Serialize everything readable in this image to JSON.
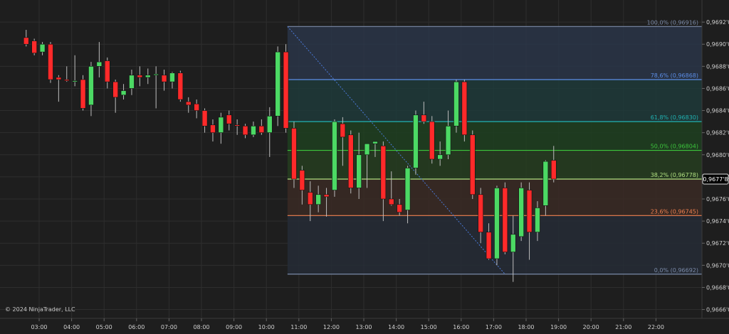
{
  "copyright": "© 2024 NinjaTrader, LLC",
  "colors": {
    "background": "#1e1e1e",
    "grid": "#2e2e2e",
    "up": "#4cd964",
    "down": "#ff2a2a",
    "axis_text": "#d0d0d0",
    "price_tag_bg": "#000000",
    "price_tag_border": "#e0e0e0"
  },
  "chart_data": {
    "type": "candlestick",
    "grid": true,
    "x_tick_labels": [
      "03:00",
      "04:00",
      "05:00",
      "06:00",
      "07:00",
      "08:00",
      "09:00",
      "10:00",
      "11:00",
      "12:00",
      "13:00",
      "14:00",
      "15:00",
      "16:00",
      "17:00",
      "18:00",
      "19:00",
      "20:00",
      "21:00",
      "22:00"
    ],
    "y_tick_labels": [
      "0,9692'0",
      "0,9690'0",
      "0,9688'0",
      "0,9686'0",
      "0,9684'0",
      "0,9682'0",
      "0,9680'0",
      "0,9678'0",
      "0,9676'0",
      "0,9674'0",
      "0,9672'0",
      "0,9670'0",
      "0,9668'0",
      "0,9666'0"
    ],
    "y_tick_values": [
      0.9692,
      0.969,
      0.9688,
      0.9686,
      0.9684,
      0.9682,
      0.968,
      0.9678,
      0.9676,
      0.9674,
      0.9672,
      0.967,
      0.9668,
      0.9666
    ],
    "ylim": [
      0.96652,
      0.9694
    ],
    "x_start_hour": 2.5,
    "x_end_hour": 22.8,
    "current_price": {
      "value": 0.96778,
      "label": "0,9677'8"
    },
    "candles": [
      {
        "t": 2.6,
        "o": 0.96906,
        "h": 0.96913,
        "l": 0.96898,
        "c": 0.969
      },
      {
        "t": 2.85,
        "o": 0.96903,
        "h": 0.96905,
        "l": 0.9689,
        "c": 0.96892
      },
      {
        "t": 3.1,
        "o": 0.96893,
        "h": 0.96902,
        "l": 0.9689,
        "c": 0.969
      },
      {
        "t": 3.35,
        "o": 0.969,
        "h": 0.96902,
        "l": 0.96865,
        "c": 0.96868
      },
      {
        "t": 3.6,
        "o": 0.9687,
        "h": 0.96872,
        "l": 0.96848,
        "c": 0.96868
      },
      {
        "t": 3.85,
        "o": 0.96868,
        "h": 0.9688,
        "l": 0.96866,
        "c": 0.96867
      },
      {
        "t": 4.1,
        "o": 0.96867,
        "h": 0.9689,
        "l": 0.96862,
        "c": 0.96867
      },
      {
        "t": 4.35,
        "o": 0.96868,
        "h": 0.96872,
        "l": 0.9684,
        "c": 0.96842
      },
      {
        "t": 4.6,
        "o": 0.96845,
        "h": 0.96884,
        "l": 0.96835,
        "c": 0.9688
      },
      {
        "t": 4.85,
        "o": 0.9688,
        "h": 0.96902,
        "l": 0.9687,
        "c": 0.96884
      },
      {
        "t": 5.1,
        "o": 0.96885,
        "h": 0.96888,
        "l": 0.9686,
        "c": 0.96866
      },
      {
        "t": 5.35,
        "o": 0.96866,
        "h": 0.96868,
        "l": 0.96838,
        "c": 0.96852
      },
      {
        "t": 5.6,
        "o": 0.96854,
        "h": 0.96864,
        "l": 0.9685,
        "c": 0.96858
      },
      {
        "t": 5.85,
        "o": 0.9686,
        "h": 0.96877,
        "l": 0.96854,
        "c": 0.96872
      },
      {
        "t": 6.1,
        "o": 0.96872,
        "h": 0.9688,
        "l": 0.96862,
        "c": 0.9687
      },
      {
        "t": 6.35,
        "o": 0.9687,
        "h": 0.96878,
        "l": 0.96864,
        "c": 0.96872
      },
      {
        "t": 6.6,
        "o": 0.96872,
        "h": 0.9688,
        "l": 0.96842,
        "c": 0.96873
      },
      {
        "t": 6.85,
        "o": 0.96872,
        "h": 0.96877,
        "l": 0.96858,
        "c": 0.96866
      },
      {
        "t": 7.1,
        "o": 0.96866,
        "h": 0.96875,
        "l": 0.9686,
        "c": 0.96874
      },
      {
        "t": 7.35,
        "o": 0.96874,
        "h": 0.96876,
        "l": 0.96848,
        "c": 0.9685
      },
      {
        "t": 7.6,
        "o": 0.96848,
        "h": 0.96852,
        "l": 0.96838,
        "c": 0.96845
      },
      {
        "t": 7.85,
        "o": 0.96846,
        "h": 0.9685,
        "l": 0.96833,
        "c": 0.9684
      },
      {
        "t": 8.1,
        "o": 0.9684,
        "h": 0.96842,
        "l": 0.9682,
        "c": 0.96826
      },
      {
        "t": 8.35,
        "o": 0.96827,
        "h": 0.96832,
        "l": 0.96812,
        "c": 0.9682
      },
      {
        "t": 8.6,
        "o": 0.9682,
        "h": 0.96838,
        "l": 0.9681,
        "c": 0.96834
      },
      {
        "t": 8.85,
        "o": 0.96836,
        "h": 0.9684,
        "l": 0.96822,
        "c": 0.96828
      },
      {
        "t": 9.1,
        "o": 0.96827,
        "h": 0.96832,
        "l": 0.96818,
        "c": 0.96826
      },
      {
        "t": 9.35,
        "o": 0.96826,
        "h": 0.96828,
        "l": 0.96815,
        "c": 0.96818
      },
      {
        "t": 9.6,
        "o": 0.96818,
        "h": 0.9683,
        "l": 0.96816,
        "c": 0.96826
      },
      {
        "t": 9.85,
        "o": 0.96826,
        "h": 0.96832,
        "l": 0.96818,
        "c": 0.9682
      },
      {
        "t": 10.1,
        "o": 0.9682,
        "h": 0.96843,
        "l": 0.96798,
        "c": 0.96835
      },
      {
        "t": 10.35,
        "o": 0.96835,
        "h": 0.96898,
        "l": 0.96826,
        "c": 0.96893
      },
      {
        "t": 10.6,
        "o": 0.96893,
        "h": 0.969,
        "l": 0.9682,
        "c": 0.96824
      },
      {
        "t": 10.85,
        "o": 0.96824,
        "h": 0.9683,
        "l": 0.9677,
        "c": 0.96778
      },
      {
        "t": 11.1,
        "o": 0.96786,
        "h": 0.9679,
        "l": 0.96755,
        "c": 0.96768
      },
      {
        "t": 11.35,
        "o": 0.96766,
        "h": 0.96776,
        "l": 0.9674,
        "c": 0.96755
      },
      {
        "t": 11.6,
        "o": 0.96755,
        "h": 0.96772,
        "l": 0.96748,
        "c": 0.96764
      },
      {
        "t": 11.85,
        "o": 0.96764,
        "h": 0.9677,
        "l": 0.96744,
        "c": 0.96762
      },
      {
        "t": 12.1,
        "o": 0.96768,
        "h": 0.96832,
        "l": 0.96762,
        "c": 0.9683
      },
      {
        "t": 12.35,
        "o": 0.96828,
        "h": 0.96834,
        "l": 0.9679,
        "c": 0.96816
      },
      {
        "t": 12.6,
        "o": 0.96818,
        "h": 0.96822,
        "l": 0.96765,
        "c": 0.9677
      },
      {
        "t": 12.85,
        "o": 0.9677,
        "h": 0.9682,
        "l": 0.9676,
        "c": 0.968
      },
      {
        "t": 13.1,
        "o": 0.968,
        "h": 0.9681,
        "l": 0.9677,
        "c": 0.9681
      },
      {
        "t": 13.35,
        "o": 0.9681,
        "h": 0.96812,
        "l": 0.96798,
        "c": 0.96812
      },
      {
        "t": 13.6,
        "o": 0.96808,
        "h": 0.96812,
        "l": 0.9674,
        "c": 0.9676
      },
      {
        "t": 13.85,
        "o": 0.9676,
        "h": 0.96785,
        "l": 0.96754,
        "c": 0.96755
      },
      {
        "t": 14.1,
        "o": 0.96755,
        "h": 0.9676,
        "l": 0.96745,
        "c": 0.96748
      },
      {
        "t": 14.35,
        "o": 0.9675,
        "h": 0.9679,
        "l": 0.96738,
        "c": 0.96788
      },
      {
        "t": 14.6,
        "o": 0.96788,
        "h": 0.9684,
        "l": 0.96782,
        "c": 0.96836
      },
      {
        "t": 14.85,
        "o": 0.96836,
        "h": 0.96848,
        "l": 0.96828,
        "c": 0.9683
      },
      {
        "t": 15.1,
        "o": 0.9683,
        "h": 0.96835,
        "l": 0.96792,
        "c": 0.96796
      },
      {
        "t": 15.35,
        "o": 0.96796,
        "h": 0.96812,
        "l": 0.9679,
        "c": 0.968
      },
      {
        "t": 15.6,
        "o": 0.968,
        "h": 0.9684,
        "l": 0.96796,
        "c": 0.96826
      },
      {
        "t": 15.85,
        "o": 0.96826,
        "h": 0.96868,
        "l": 0.9682,
        "c": 0.96866
      },
      {
        "t": 16.1,
        "o": 0.96866,
        "h": 0.96868,
        "l": 0.96812,
        "c": 0.96818
      },
      {
        "t": 16.35,
        "o": 0.96818,
        "h": 0.96822,
        "l": 0.9676,
        "c": 0.96764
      },
      {
        "t": 16.6,
        "o": 0.96764,
        "h": 0.9677,
        "l": 0.9672,
        "c": 0.9673
      },
      {
        "t": 16.85,
        "o": 0.9673,
        "h": 0.96738,
        "l": 0.96705,
        "c": 0.96706
      },
      {
        "t": 17.1,
        "o": 0.96706,
        "h": 0.96772,
        "l": 0.967,
        "c": 0.9677
      },
      {
        "t": 17.35,
        "o": 0.9677,
        "h": 0.96775,
        "l": 0.9671,
        "c": 0.96712
      },
      {
        "t": 17.6,
        "o": 0.96712,
        "h": 0.96745,
        "l": 0.96685,
        "c": 0.96728
      },
      {
        "t": 17.85,
        "o": 0.96726,
        "h": 0.96775,
        "l": 0.96722,
        "c": 0.9677
      },
      {
        "t": 18.1,
        "o": 0.96768,
        "h": 0.96775,
        "l": 0.96705,
        "c": 0.9673
      },
      {
        "t": 18.35,
        "o": 0.9673,
        "h": 0.96758,
        "l": 0.96722,
        "c": 0.96752
      },
      {
        "t": 18.6,
        "o": 0.96754,
        "h": 0.96795,
        "l": 0.96745,
        "c": 0.96794
      },
      {
        "t": 18.85,
        "o": 0.96795,
        "h": 0.96808,
        "l": 0.96775,
        "c": 0.96778
      }
    ],
    "fib_start": {
      "t": 10.65,
      "price": 0.96916
    },
    "fib_end": {
      "t": 17.35,
      "price": 0.96692
    },
    "fib_levels": [
      {
        "ratio": 1.0,
        "price": 0.96916,
        "label": "100,0% (0,96916)",
        "color": "#7a8aa8"
      },
      {
        "ratio": 0.786,
        "price": 0.96868,
        "label": "78,6% (0,96868)",
        "color": "#5b8ee8"
      },
      {
        "ratio": 0.618,
        "price": 0.9683,
        "label": "61,8% (0,96830)",
        "color": "#20b2b2"
      },
      {
        "ratio": 0.5,
        "price": 0.96804,
        "label": "50,0% (0,96804)",
        "color": "#3cc63c"
      },
      {
        "ratio": 0.382,
        "price": 0.96778,
        "label": "38,2% (0,96778)",
        "color": "#b0e080"
      },
      {
        "ratio": 0.236,
        "price": 0.96745,
        "label": "23,6% (0,96745)",
        "color": "#f08050"
      },
      {
        "ratio": 0.0,
        "price": 0.96692,
        "label": "0,0% (0,96692)",
        "color": "#7a8aa8"
      }
    ],
    "fib_zone_fills": [
      "#2a3548",
      "#1f3a3a",
      "#1f4020",
      "#263d20",
      "#3a2a24",
      "#262c36"
    ]
  }
}
